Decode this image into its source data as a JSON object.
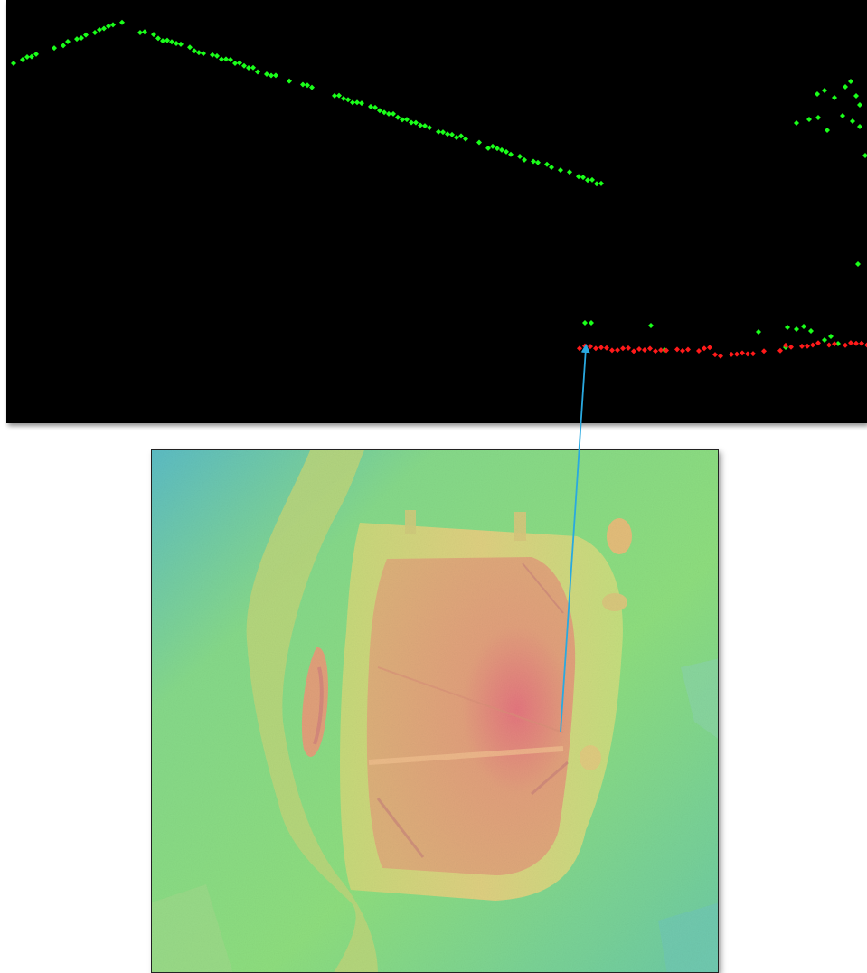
{
  "figure": {
    "panels": [
      "lidar-profile-view",
      "elevation-hillshade-map"
    ]
  },
  "colors": {
    "background": "#000000",
    "ground_points": "#ff1a1a",
    "non_ground_points": "#1aff1a",
    "link_arrow": "#29a9e0",
    "dem_low": "#4fb8c9",
    "dem_mid": "#7fdc7a",
    "dem_high": "#e2b47c",
    "dem_peak": "#e07a86"
  },
  "icons": {
    "link_arrow": "arrow-up-icon"
  }
}
